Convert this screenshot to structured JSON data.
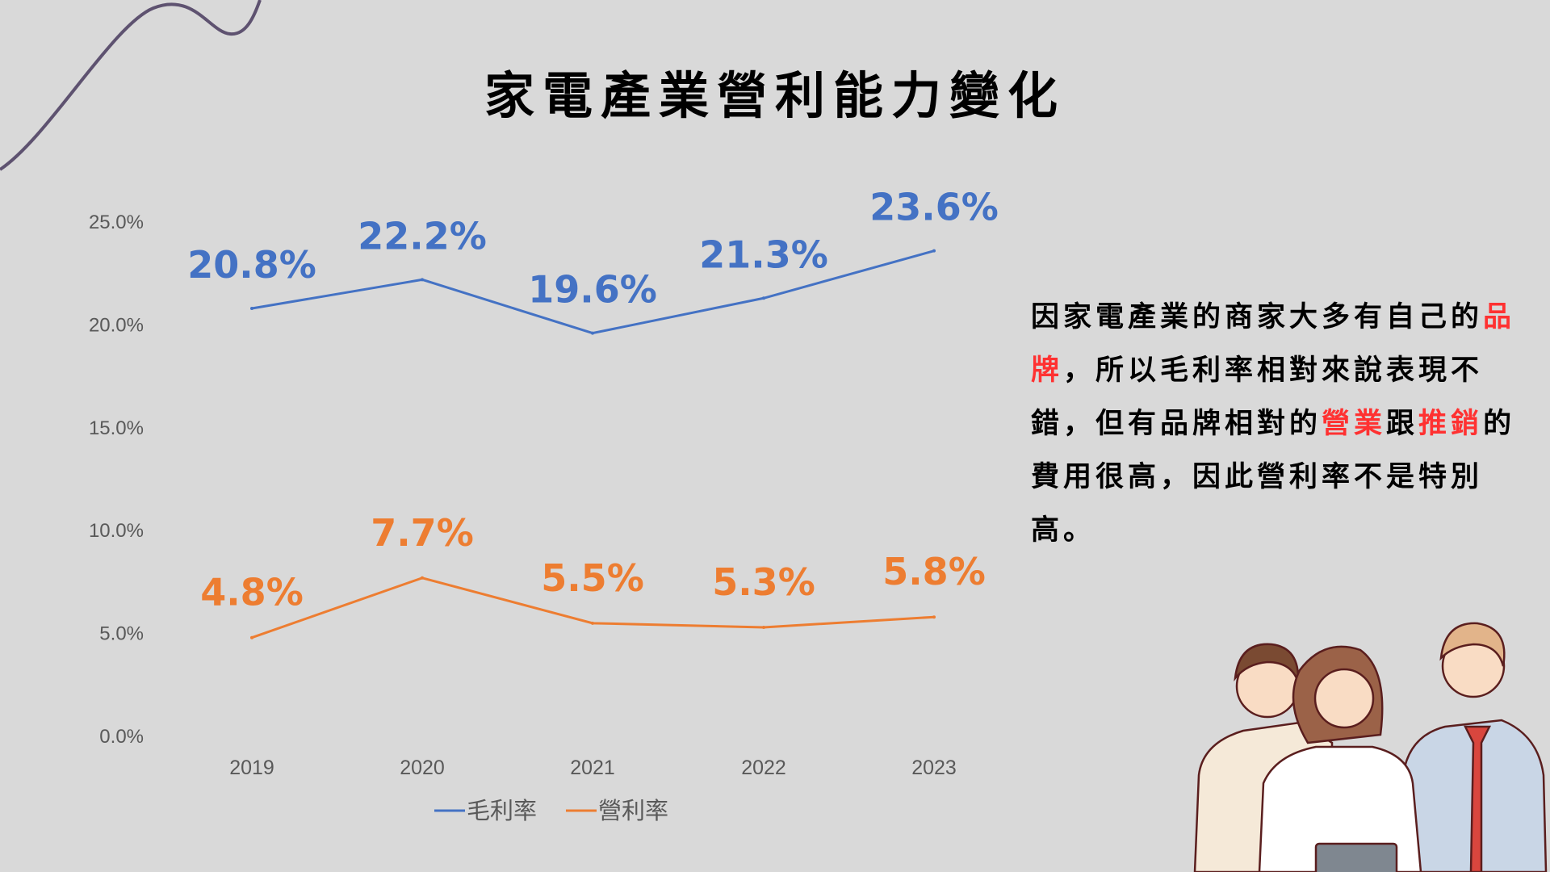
{
  "title": "家電產業營利能力變化",
  "description": {
    "segments": [
      {
        "text": "因家電產業的商家大多有自己的",
        "highlight": false
      },
      {
        "text": "品牌",
        "highlight": true
      },
      {
        "text": "，所以毛利率相對來說表現不錯，但有品牌相對的",
        "highlight": false
      },
      {
        "text": "營業",
        "highlight": true
      },
      {
        "text": "跟",
        "highlight": false
      },
      {
        "text": "推銷",
        "highlight": true
      },
      {
        "text": "的費用很高，因此營利率不是特別高。",
        "highlight": false
      }
    ],
    "highlight_color": "#ff3131"
  },
  "chart_data": {
    "type": "line",
    "title": "家電產業營利能力變化",
    "categories": [
      "2019",
      "2020",
      "2021",
      "2022",
      "2023"
    ],
    "ylim": [
      0,
      25
    ],
    "yticks": [
      "0.0%",
      "5.0%",
      "10.0%",
      "15.0%",
      "20.0%",
      "25.0%"
    ],
    "grid": false,
    "legend_position": "bottom",
    "series": [
      {
        "name": "毛利率",
        "color": "#4472c4",
        "values": [
          20.8,
          22.2,
          19.6,
          21.3,
          23.6
        ],
        "labels": [
          "20.8%",
          "22.2%",
          "19.6%",
          "21.3%",
          "23.6%"
        ]
      },
      {
        "name": "營利率",
        "color": "#ed7d31",
        "values": [
          4.8,
          7.7,
          5.5,
          5.3,
          5.8
        ],
        "labels": [
          "4.8%",
          "7.7%",
          "5.5%",
          "5.3%",
          "5.8%"
        ]
      }
    ]
  }
}
